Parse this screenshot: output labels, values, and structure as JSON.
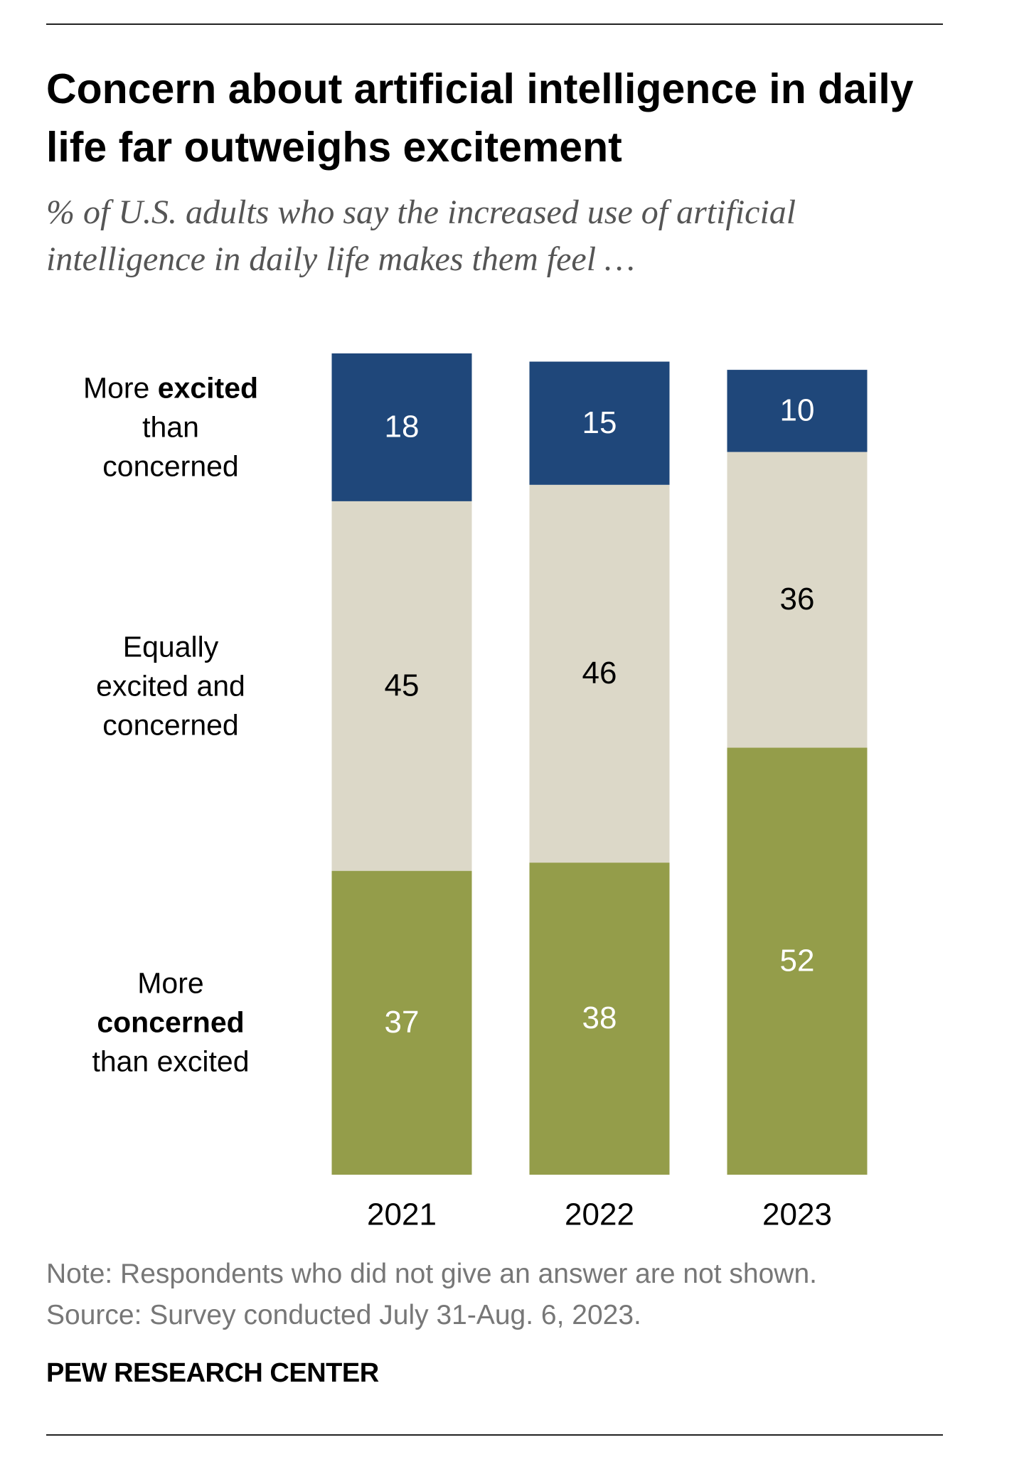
{
  "chart_data": {
    "type": "stacked_bar",
    "title": "Concern about artificial intelligence in daily life far outweighs excitement",
    "subtitle": "% of U.S. adults who say the increased use of artificial intelligence in daily life makes them feel …",
    "categories": [
      "2021",
      "2022",
      "2023"
    ],
    "series": [
      {
        "name": "More concerned than excited",
        "name_emphasis": "concerned",
        "color": "#949d4a",
        "label_color": "#ffffff",
        "values": [
          37,
          38,
          52
        ]
      },
      {
        "name": "Equally excited and concerned",
        "color": "#dcd8c8",
        "label_color": "#000000",
        "values": [
          45,
          46,
          36
        ]
      },
      {
        "name": "More excited than concerned",
        "name_emphasis": "excited",
        "color": "#1f477a",
        "label_color": "#ffffff",
        "values": [
          18,
          15,
          10
        ]
      }
    ],
    "ylim": [
      0,
      100
    ],
    "note": "Note: Respondents who did not give an answer are not shown.",
    "source": "Source: Survey conducted July 31-Aug. 6, 2023.",
    "credit": "PEW RESEARCH CENTER"
  }
}
